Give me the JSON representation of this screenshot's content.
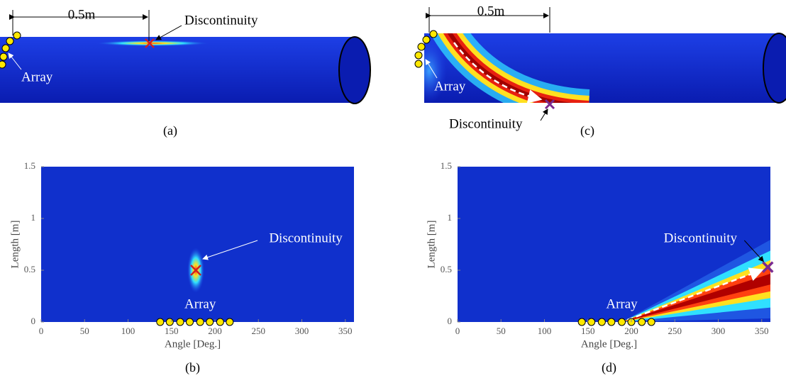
{
  "panel_a": {
    "caption": "(a)",
    "dimension": "0.5m",
    "discontinuity": "Discontinuity",
    "array": "Array"
  },
  "panel_c": {
    "caption": "(c)",
    "dimension": "0.5m",
    "discontinuity": "Discontinuity",
    "array": "Array"
  },
  "chart_data": [
    {
      "type": "heatmap",
      "caption": "(b)",
      "xlabel": "Angle [Deg.]",
      "ylabel": "Length [m]",
      "xlim": [
        0,
        360
      ],
      "ylim": [
        0,
        1.5
      ],
      "xticks": [
        0,
        50,
        100,
        150,
        200,
        250,
        300,
        350
      ],
      "yticks": [
        0,
        0.5,
        1,
        1.5
      ],
      "discontinuity": {
        "label": "Discontinuity",
        "x": 178,
        "y": 0.5
      },
      "array": {
        "label": "Array",
        "x": [
          137,
          148,
          160,
          171,
          183,
          194,
          206,
          217
        ]
      }
    },
    {
      "type": "heatmap",
      "caption": "(d)",
      "xlabel": "Angle [Deg.]",
      "ylabel": "Length [m]",
      "xlim": [
        0,
        360
      ],
      "ylim": [
        0,
        1.5
      ],
      "xticks": [
        0,
        50,
        100,
        150,
        200,
        250,
        300,
        350
      ],
      "yticks": [
        0,
        0.5,
        1,
        1.5
      ],
      "discontinuity": {
        "label": "Discontinuity",
        "x": 357,
        "y": 0.53
      },
      "array": {
        "label": "Array",
        "x": [
          143,
          154,
          166,
          177,
          189,
          200,
          212,
          223
        ]
      }
    }
  ]
}
